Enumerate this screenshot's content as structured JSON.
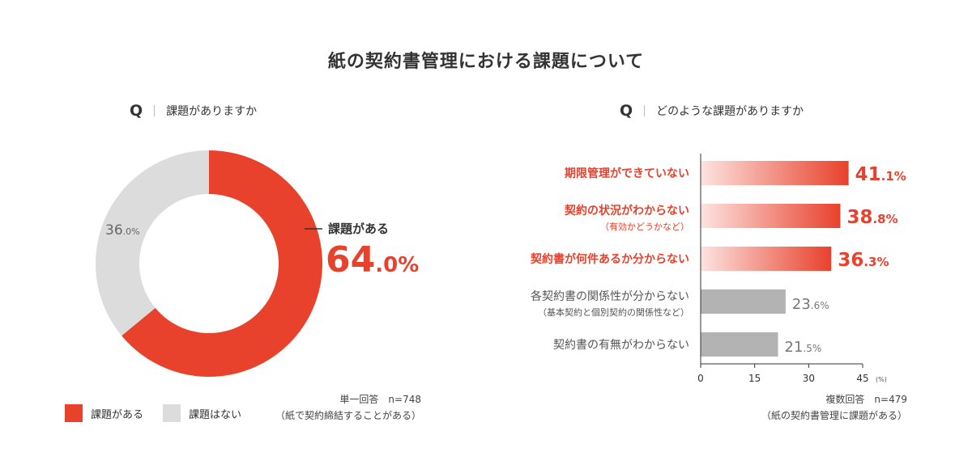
{
  "title": "紙の契約書管理における課題について",
  "colors": {
    "red": "#e8412c",
    "grey": "#dcdcdc",
    "bar_grey": "#b3b3b3",
    "dark": "#333333"
  },
  "left": {
    "q": "Q",
    "question": "課題がありますか",
    "note_line1": "単一回答　n=748",
    "note_line2": "（紙で契約締結することがある）",
    "legend": [
      {
        "label": "課題がある",
        "color": "#e8412c"
      },
      {
        "label": "課題はない",
        "color": "#dcdcdc"
      }
    ]
  },
  "right": {
    "q": "Q",
    "question": "どのような課題がありますか",
    "note_line1": "複数回答　n=479",
    "note_line2": "（紙の契約書管理に課題がある）"
  },
  "chart_data": [
    {
      "type": "pie",
      "labels": [
        "課題がある",
        "課題はない"
      ],
      "values": [
        64.0,
        36.0
      ],
      "display": [
        {
          "int": "64",
          "dec": ".0%",
          "label": "課題がある"
        },
        {
          "int": "36",
          "dec": ".0%"
        }
      ]
    },
    {
      "type": "bar",
      "orientation": "horizontal",
      "categories": [
        "期限管理ができていない",
        "契約の状況がわからない",
        "契約書が何件あるか分からない",
        "各契約書の関係性が分からない",
        "契約書の有無がわからない"
      ],
      "sublabels": [
        "",
        "（有効かどうかなど）",
        "",
        "（基本契約と個別契約の関係性など）",
        ""
      ],
      "values": [
        41.1,
        38.8,
        36.3,
        23.6,
        21.5
      ],
      "value_int": [
        "41",
        "38",
        "36",
        "23",
        "21"
      ],
      "value_dec": [
        ".1%",
        ".8%",
        ".3%",
        ".6%",
        ".5%"
      ],
      "highlight": [
        true,
        true,
        true,
        false,
        false
      ],
      "xlim": [
        0,
        45
      ],
      "xticks": [
        "0",
        "15",
        "30",
        "45"
      ],
      "xunit": "(%)"
    }
  ]
}
